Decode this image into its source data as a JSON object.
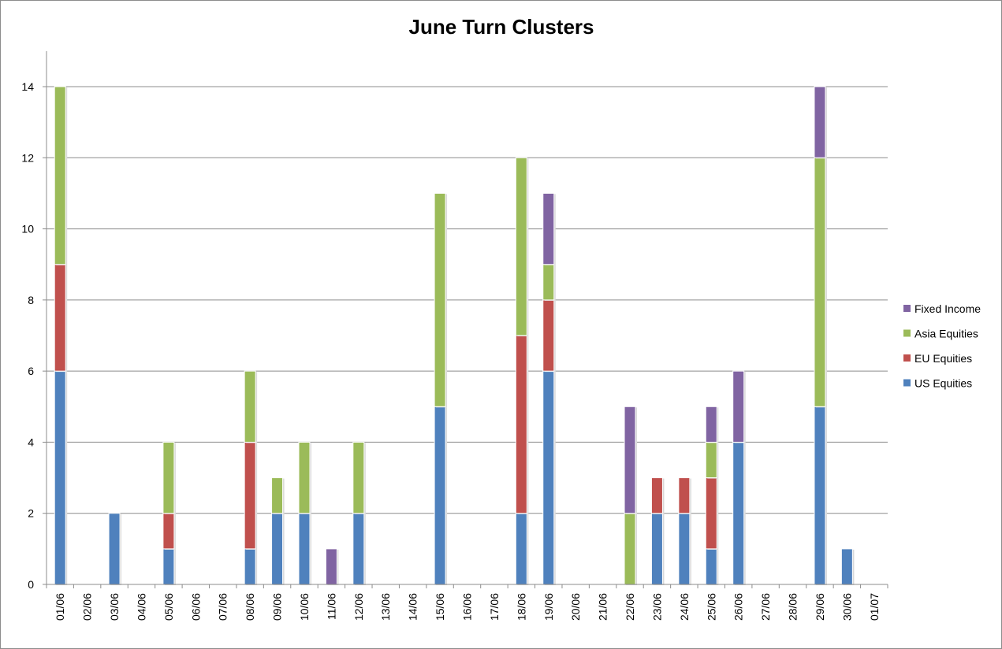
{
  "chart_data": {
    "type": "bar",
    "stacked": true,
    "title": "June Turn Clusters",
    "xlabel": "",
    "ylabel": "",
    "ylim": [
      0,
      15
    ],
    "yticks": [
      0,
      2,
      4,
      6,
      8,
      10,
      12,
      14
    ],
    "grid": true,
    "legend_position": "right",
    "categories": [
      "01/06",
      "02/06",
      "03/06",
      "04/06",
      "05/06",
      "06/06",
      "07/06",
      "08/06",
      "09/06",
      "10/06",
      "11/06",
      "12/06",
      "13/06",
      "14/06",
      "15/06",
      "16/06",
      "17/06",
      "18/06",
      "19/06",
      "20/06",
      "21/06",
      "22/06",
      "23/06",
      "24/06",
      "25/06",
      "26/06",
      "27/06",
      "28/06",
      "29/06",
      "30/06",
      "01/07"
    ],
    "series": [
      {
        "name": "US Equities",
        "color": "#4F81BD",
        "values": [
          6,
          0,
          2,
          0,
          1,
          0,
          0,
          1,
          2,
          2,
          0,
          2,
          0,
          0,
          5,
          0,
          0,
          2,
          6,
          0,
          0,
          0,
          2,
          2,
          1,
          4,
          0,
          0,
          5,
          1,
          0
        ]
      },
      {
        "name": "EU Equities",
        "color": "#C0504D",
        "values": [
          3,
          0,
          0,
          0,
          1,
          0,
          0,
          3,
          0,
          0,
          0,
          0,
          0,
          0,
          0,
          0,
          0,
          5,
          2,
          0,
          0,
          0,
          1,
          1,
          2,
          0,
          0,
          0,
          0,
          0,
          0
        ]
      },
      {
        "name": "Asia Equities",
        "color": "#9BBB59",
        "values": [
          5,
          0,
          0,
          0,
          2,
          0,
          0,
          2,
          1,
          2,
          0,
          2,
          0,
          0,
          6,
          0,
          0,
          5,
          1,
          0,
          0,
          2,
          0,
          0,
          1,
          0,
          0,
          0,
          7,
          0,
          0
        ]
      },
      {
        "name": "Fixed Income",
        "color": "#8064A2",
        "values": [
          0,
          0,
          0,
          0,
          0,
          0,
          0,
          0,
          0,
          0,
          1,
          0,
          0,
          0,
          0,
          0,
          0,
          0,
          2,
          0,
          0,
          3,
          0,
          0,
          1,
          2,
          0,
          0,
          2,
          0,
          0
        ]
      }
    ]
  }
}
